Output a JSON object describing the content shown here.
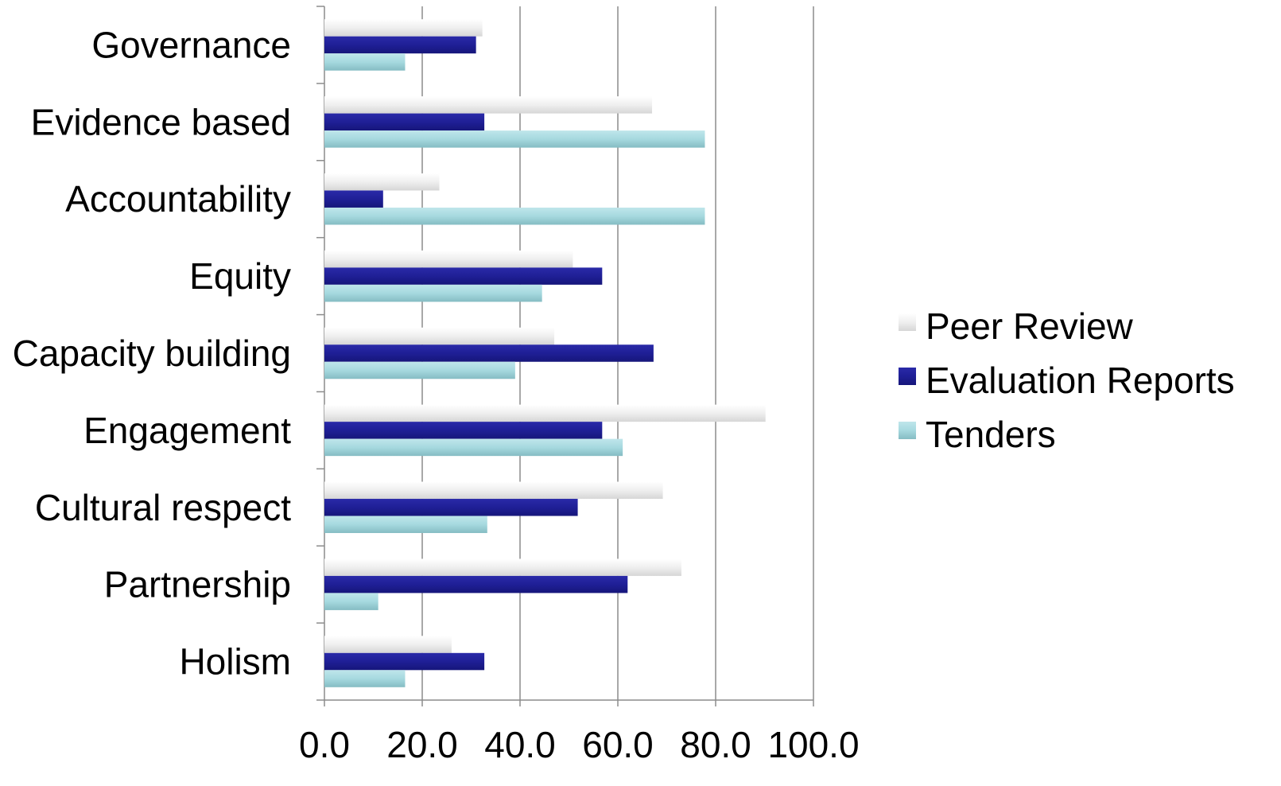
{
  "chart_data": {
    "type": "bar",
    "orientation": "horizontal",
    "categories": [
      "Governance",
      "Evidence based",
      "Accountability",
      "Equity",
      "Capacity building",
      "Engagement",
      "Cultural respect",
      "Partnership",
      "Holism"
    ],
    "series": [
      {
        "name": "Peer Review",
        "color": "#e2e2e2",
        "values": [
          32.3,
          67.0,
          23.5,
          50.8,
          47.0,
          90.2,
          69.2,
          73.0,
          26.0
        ]
      },
      {
        "name": "Evaluation Reports",
        "color": "#1f1f96",
        "values": [
          31.0,
          32.7,
          12.0,
          56.8,
          67.3,
          56.8,
          51.8,
          62.0,
          32.7
        ]
      },
      {
        "name": "Tenders",
        "color": "#9dd3da",
        "values": [
          16.5,
          77.8,
          77.8,
          44.5,
          39.0,
          61.0,
          33.3,
          11.0,
          16.5
        ]
      }
    ],
    "xlim": [
      0,
      100
    ],
    "xticks": [
      0,
      20,
      40,
      60,
      80,
      100
    ],
    "xtick_labels": [
      "0.0",
      "20.0",
      "40.0",
      "60.0",
      "80.0",
      "100.0"
    ],
    "grid": "vertical",
    "legend_position": "right",
    "title": "",
    "xlabel": "",
    "ylabel": ""
  }
}
